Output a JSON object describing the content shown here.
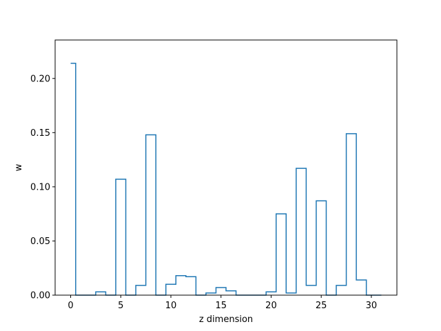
{
  "chart_data": {
    "type": "step",
    "title": "",
    "xlabel": "z dimension",
    "ylabel": "w",
    "xlim": [
      -1.55,
      32.55
    ],
    "ylim": [
      0,
      0.2355
    ],
    "grid": false,
    "legend": "none",
    "x_ticks": [
      0,
      5,
      10,
      15,
      20,
      25,
      30
    ],
    "x_tick_labels": [
      "0",
      "5",
      "10",
      "15",
      "20",
      "25",
      "30"
    ],
    "y_ticks": [
      0.0,
      0.05,
      0.1,
      0.15,
      0.2
    ],
    "y_tick_labels": [
      "0.00",
      "0.05",
      "0.10",
      "0.15",
      "0.20"
    ],
    "step_where": "mid",
    "series": [
      {
        "color": "#1f77b4",
        "x": [
          0,
          1,
          2,
          3,
          4,
          5,
          6,
          7,
          8,
          9,
          10,
          11,
          12,
          13,
          14,
          15,
          16,
          17,
          18,
          19,
          20,
          21,
          22,
          23,
          24,
          25,
          26,
          27,
          28,
          29,
          30,
          31
        ],
        "values": [
          0.214,
          0.0,
          0.0,
          0.003,
          0.0,
          0.107,
          0.0,
          0.009,
          0.148,
          0.0,
          0.01,
          0.018,
          0.017,
          0.0,
          0.002,
          0.007,
          0.004,
          0.0,
          0.0,
          0.0,
          0.003,
          0.075,
          0.002,
          0.117,
          0.009,
          0.087,
          0.0,
          0.009,
          0.149,
          0.014,
          0.0,
          0.0
        ]
      }
    ]
  }
}
